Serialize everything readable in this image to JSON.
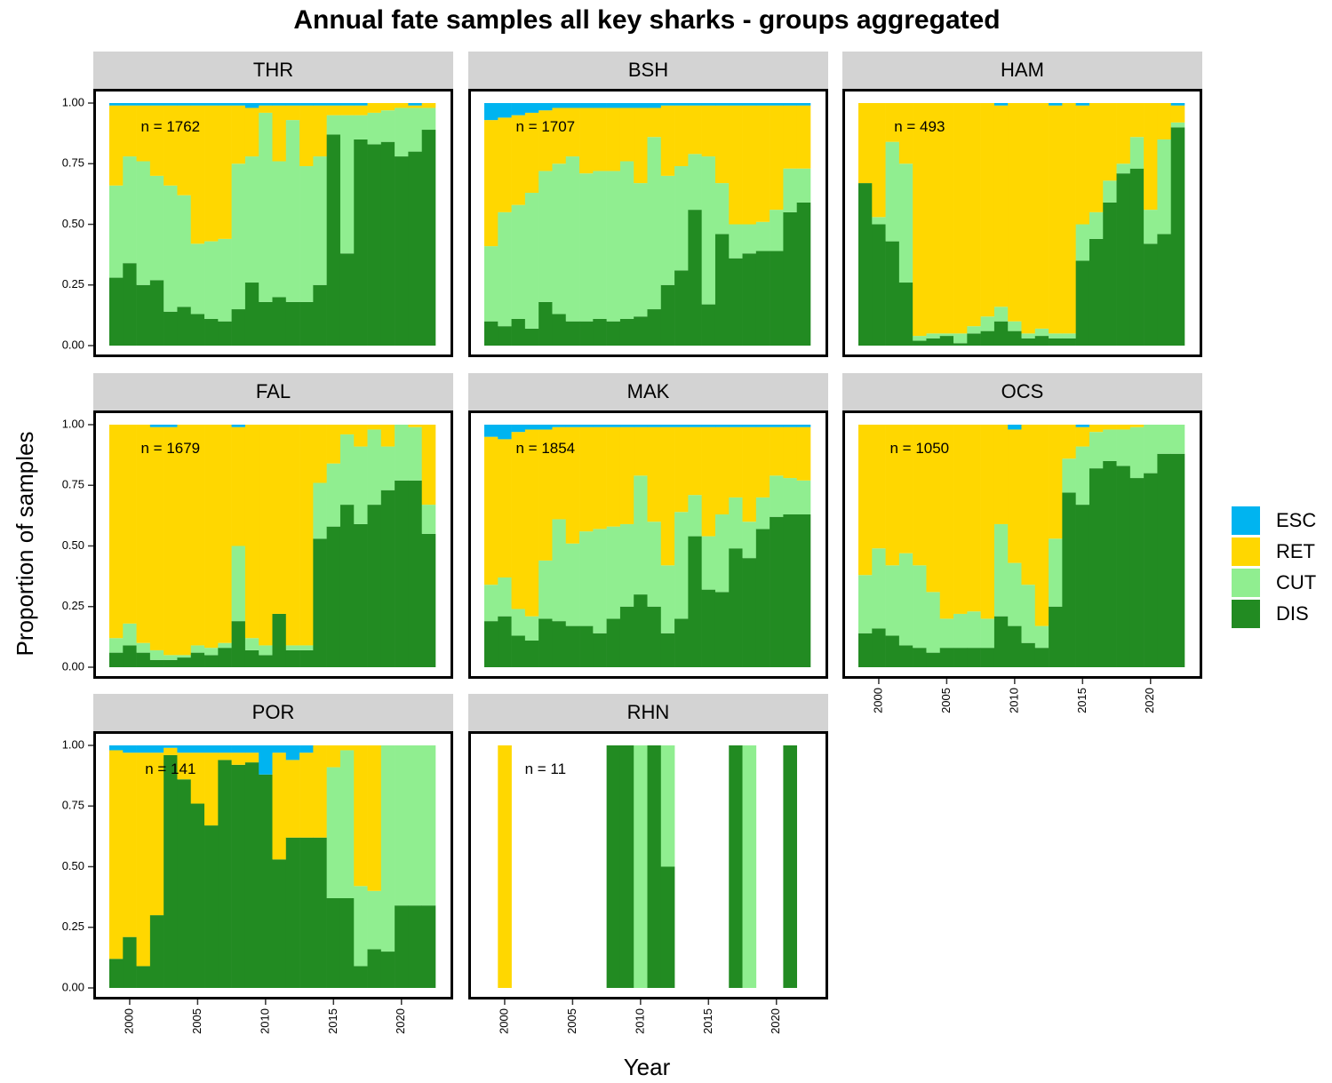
{
  "chart_data": {
    "type": "bar",
    "stacked": true,
    "title": "Annual fate samples all key sharks - groups aggregated",
    "x_label": "Year",
    "y_label": "Proportion of samples",
    "x": [
      1999,
      2000,
      2001,
      2002,
      2003,
      2004,
      2005,
      2006,
      2007,
      2008,
      2009,
      2010,
      2011,
      2012,
      2013,
      2014,
      2015,
      2016,
      2017,
      2018,
      2019,
      2020,
      2021,
      2022
    ],
    "xlim": [
      1998.5,
      2022.5
    ],
    "xticks": [
      2000,
      2005,
      2010,
      2015,
      2020
    ],
    "ylim": [
      0,
      1
    ],
    "yticks": [
      {
        "value": 0,
        "label": "0.00"
      },
      {
        "value": 0.25,
        "label": "0.25"
      },
      {
        "value": 0.5,
        "label": "0.50"
      },
      {
        "value": 0.75,
        "label": "0.75"
      },
      {
        "value": 1,
        "label": "1.00"
      }
    ],
    "series": [
      {
        "name": "ESC",
        "color": "#00b4f0"
      },
      {
        "name": "RET",
        "color": "#ffd700"
      },
      {
        "name": "CUT",
        "color": "#90ee90"
      },
      {
        "name": "DIS",
        "color": "#228b22"
      }
    ],
    "panels": [
      {
        "title": "THR",
        "annotation": "n = 1762",
        "values": [
          [
            0.01,
            0.01,
            0.01,
            0.01,
            0.01,
            0.01,
            0.01,
            0.01,
            0.01,
            0.01,
            0.02,
            0.01,
            0.01,
            0.01,
            0.01,
            0.01,
            0.01,
            0.01,
            0.01,
            0,
            0,
            0,
            0.01,
            0
          ],
          [
            0.33,
            0.21,
            0.23,
            0.29,
            0.33,
            0.37,
            0.57,
            0.56,
            0.55,
            0.24,
            0.2,
            0.03,
            0.23,
            0.06,
            0.25,
            0.21,
            0.04,
            0.04,
            0.04,
            0.04,
            0.03,
            0.02,
            0.01,
            0.02
          ],
          [
            0.38,
            0.44,
            0.51,
            0.43,
            0.52,
            0.46,
            0.29,
            0.32,
            0.34,
            0.6,
            0.52,
            0.78,
            0.56,
            0.75,
            0.56,
            0.53,
            0.08,
            0.57,
            0.1,
            0.13,
            0.13,
            0.2,
            0.18,
            0.09
          ],
          [
            0.28,
            0.34,
            0.25,
            0.27,
            0.14,
            0.16,
            0.13,
            0.11,
            0.1,
            0.15,
            0.26,
            0.18,
            0.2,
            0.18,
            0.18,
            0.25,
            0.87,
            0.38,
            0.85,
            0.83,
            0.84,
            0.78,
            0.8,
            0.89
          ]
        ]
      },
      {
        "title": "BSH",
        "annotation": "n = 1707",
        "values": [
          [
            0.07,
            0.06,
            0.05,
            0.04,
            0.03,
            0.02,
            0.02,
            0.02,
            0.02,
            0.02,
            0.02,
            0.02,
            0.02,
            0.01,
            0.01,
            0.01,
            0.01,
            0.01,
            0.01,
            0.01,
            0.01,
            0.01,
            0.01,
            0.01
          ],
          [
            0.52,
            0.39,
            0.37,
            0.33,
            0.25,
            0.23,
            0.2,
            0.27,
            0.26,
            0.26,
            0.22,
            0.31,
            0.12,
            0.29,
            0.25,
            0.2,
            0.21,
            0.32,
            0.49,
            0.49,
            0.48,
            0.43,
            0.26,
            0.26
          ],
          [
            0.31,
            0.47,
            0.47,
            0.56,
            0.54,
            0.62,
            0.68,
            0.61,
            0.61,
            0.62,
            0.65,
            0.55,
            0.71,
            0.45,
            0.43,
            0.23,
            0.61,
            0.21,
            0.14,
            0.12,
            0.12,
            0.17,
            0.18,
            0.14
          ],
          [
            0.1,
            0.08,
            0.11,
            0.07,
            0.18,
            0.13,
            0.1,
            0.1,
            0.11,
            0.1,
            0.11,
            0.12,
            0.15,
            0.25,
            0.31,
            0.56,
            0.17,
            0.46,
            0.36,
            0.38,
            0.39,
            0.39,
            0.55,
            0.59
          ]
        ]
      },
      {
        "title": "HAM",
        "annotation": "n = 493",
        "values": [
          [
            0,
            0,
            0,
            0,
            0,
            0,
            0,
            0,
            0,
            0,
            0.01,
            0,
            0,
            0,
            0.01,
            0,
            0.01,
            0,
            0,
            0,
            0,
            0,
            0,
            0.01
          ],
          [
            0.33,
            0.47,
            0.16,
            0.25,
            0.96,
            0.95,
            0.95,
            0.95,
            0.92,
            0.88,
            0.83,
            0.9,
            0.95,
            0.93,
            0.94,
            0.95,
            0.49,
            0.45,
            0.32,
            0.25,
            0.14,
            0.44,
            0.15,
            0.07
          ],
          [
            0,
            0.03,
            0.41,
            0.49,
            0.02,
            0.02,
            0.01,
            0.04,
            0.03,
            0.06,
            0.06,
            0.04,
            0.02,
            0.03,
            0.02,
            0.02,
            0.15,
            0.11,
            0.09,
            0.04,
            0.13,
            0.14,
            0.39,
            0.02
          ],
          [
            0.67,
            0.5,
            0.43,
            0.26,
            0.02,
            0.03,
            0.04,
            0.01,
            0.05,
            0.06,
            0.1,
            0.06,
            0.03,
            0.04,
            0.03,
            0.03,
            0.35,
            0.44,
            0.59,
            0.71,
            0.73,
            0.42,
            0.46,
            0.9
          ]
        ]
      },
      {
        "title": "FAL",
        "annotation": "n = 1679",
        "values": [
          [
            0,
            0,
            0,
            0.01,
            0.01,
            0,
            0,
            0,
            0,
            0.01,
            0,
            0,
            0,
            0,
            0,
            0,
            0,
            0,
            0,
            0,
            0,
            0,
            0,
            0
          ],
          [
            0.88,
            0.82,
            0.9,
            0.92,
            0.94,
            0.95,
            0.91,
            0.92,
            0.9,
            0.49,
            0.88,
            0.91,
            0.78,
            0.91,
            0.91,
            0.24,
            0.16,
            0.04,
            0.09,
            0.02,
            0.09,
            0,
            0.01,
            0.33
          ],
          [
            0.06,
            0.09,
            0.04,
            0.04,
            0.02,
            0.01,
            0.03,
            0.03,
            0.02,
            0.31,
            0.05,
            0.04,
            0,
            0.02,
            0.02,
            0.23,
            0.26,
            0.29,
            0.32,
            0.31,
            0.18,
            0.23,
            0.22,
            0.12
          ],
          [
            0.06,
            0.09,
            0.06,
            0.03,
            0.03,
            0.04,
            0.06,
            0.05,
            0.08,
            0.19,
            0.07,
            0.05,
            0.22,
            0.07,
            0.07,
            0.53,
            0.58,
            0.67,
            0.59,
            0.67,
            0.73,
            0.77,
            0.77,
            0.55
          ]
        ]
      },
      {
        "title": "MAK",
        "annotation": "n = 1854",
        "values": [
          [
            0.05,
            0.06,
            0.03,
            0.02,
            0.02,
            0.01,
            0.01,
            0.01,
            0.01,
            0.01,
            0.01,
            0.01,
            0.01,
            0.01,
            0.01,
            0.01,
            0.01,
            0.01,
            0.01,
            0.01,
            0.01,
            0.01,
            0.01,
            0.01
          ],
          [
            0.61,
            0.57,
            0.73,
            0.77,
            0.54,
            0.38,
            0.48,
            0.43,
            0.42,
            0.41,
            0.4,
            0.2,
            0.39,
            0.57,
            0.35,
            0.28,
            0.45,
            0.36,
            0.29,
            0.39,
            0.29,
            0.2,
            0.21,
            0.22
          ],
          [
            0.15,
            0.16,
            0.11,
            0.1,
            0.24,
            0.42,
            0.34,
            0.39,
            0.43,
            0.38,
            0.34,
            0.49,
            0.35,
            0.28,
            0.44,
            0.17,
            0.22,
            0.32,
            0.21,
            0.15,
            0.13,
            0.17,
            0.15,
            0.14
          ],
          [
            0.19,
            0.21,
            0.13,
            0.11,
            0.2,
            0.19,
            0.17,
            0.17,
            0.14,
            0.2,
            0.25,
            0.3,
            0.25,
            0.14,
            0.2,
            0.54,
            0.32,
            0.31,
            0.49,
            0.45,
            0.57,
            0.62,
            0.63,
            0.63
          ]
        ]
      },
      {
        "title": "OCS",
        "annotation": "n = 1050",
        "values": [
          [
            0,
            0,
            0,
            0,
            0,
            0,
            0,
            0,
            0,
            0,
            0,
            0.02,
            0,
            0,
            0,
            0,
            0.01,
            0,
            0,
            0,
            0,
            0,
            0,
            0
          ],
          [
            0.62,
            0.51,
            0.58,
            0.53,
            0.58,
            0.69,
            0.8,
            0.78,
            0.77,
            0.8,
            0.41,
            0.55,
            0.66,
            0.83,
            0.47,
            0.14,
            0.08,
            0.03,
            0.02,
            0.02,
            0.01,
            0,
            0,
            0
          ],
          [
            0.24,
            0.33,
            0.29,
            0.38,
            0.34,
            0.25,
            0.12,
            0.14,
            0.15,
            0.12,
            0.38,
            0.26,
            0.24,
            0.09,
            0.28,
            0.14,
            0.24,
            0.15,
            0.13,
            0.15,
            0.21,
            0.2,
            0.12,
            0.12
          ],
          [
            0.14,
            0.16,
            0.13,
            0.09,
            0.08,
            0.06,
            0.08,
            0.08,
            0.08,
            0.08,
            0.21,
            0.17,
            0.1,
            0.08,
            0.25,
            0.72,
            0.67,
            0.82,
            0.85,
            0.83,
            0.78,
            0.8,
            0.88,
            0.88
          ]
        ]
      },
      {
        "title": "POR",
        "annotation": "n = 141",
        "values": [
          [
            0.02,
            0.03,
            0.03,
            0.03,
            0.01,
            0.03,
            0.03,
            0.03,
            0.03,
            0.03,
            0.03,
            0.12,
            0.03,
            0.06,
            0.03,
            0,
            0,
            0,
            0,
            0,
            0,
            0,
            0,
            0
          ],
          [
            0.86,
            0.76,
            0.88,
            0.67,
            0.03,
            0.11,
            0.21,
            0.3,
            0.03,
            0.05,
            0.04,
            0,
            0.44,
            0.32,
            0.35,
            0.38,
            0.09,
            0.02,
            0.58,
            0.6,
            0,
            0,
            0,
            0
          ],
          [
            0,
            0,
            0,
            0,
            0,
            0,
            0,
            0,
            0,
            0,
            0,
            0,
            0,
            0,
            0,
            0,
            0.54,
            0.61,
            0.33,
            0.24,
            0.85,
            0.66,
            0.66,
            0.66
          ],
          [
            0.12,
            0.21,
            0.09,
            0.3,
            0.96,
            0.86,
            0.76,
            0.67,
            0.94,
            0.92,
            0.93,
            0.88,
            0.53,
            0.62,
            0.62,
            0.62,
            0.37,
            0.37,
            0.09,
            0.16,
            0.15,
            0.34,
            0.34,
            0.34
          ]
        ]
      },
      {
        "title": "RHN",
        "annotation": "n = 11",
        "values": [
          [
            null,
            0,
            null,
            null,
            null,
            null,
            null,
            null,
            null,
            0,
            0,
            0,
            0,
            0,
            null,
            null,
            null,
            null,
            0,
            0,
            null,
            null,
            0,
            null
          ],
          [
            null,
            1,
            null,
            null,
            null,
            null,
            null,
            null,
            null,
            0,
            0,
            0,
            0,
            0,
            null,
            null,
            null,
            null,
            0,
            0,
            null,
            null,
            0,
            null
          ],
          [
            null,
            0,
            null,
            null,
            null,
            null,
            null,
            null,
            null,
            0,
            0,
            1,
            0,
            0.5,
            null,
            null,
            null,
            null,
            0,
            1,
            null,
            null,
            0,
            null
          ],
          [
            null,
            0,
            null,
            null,
            null,
            null,
            null,
            null,
            null,
            1,
            1,
            0,
            1,
            0.5,
            null,
            null,
            null,
            null,
            1,
            0,
            null,
            null,
            1,
            null
          ]
        ]
      }
    ]
  }
}
